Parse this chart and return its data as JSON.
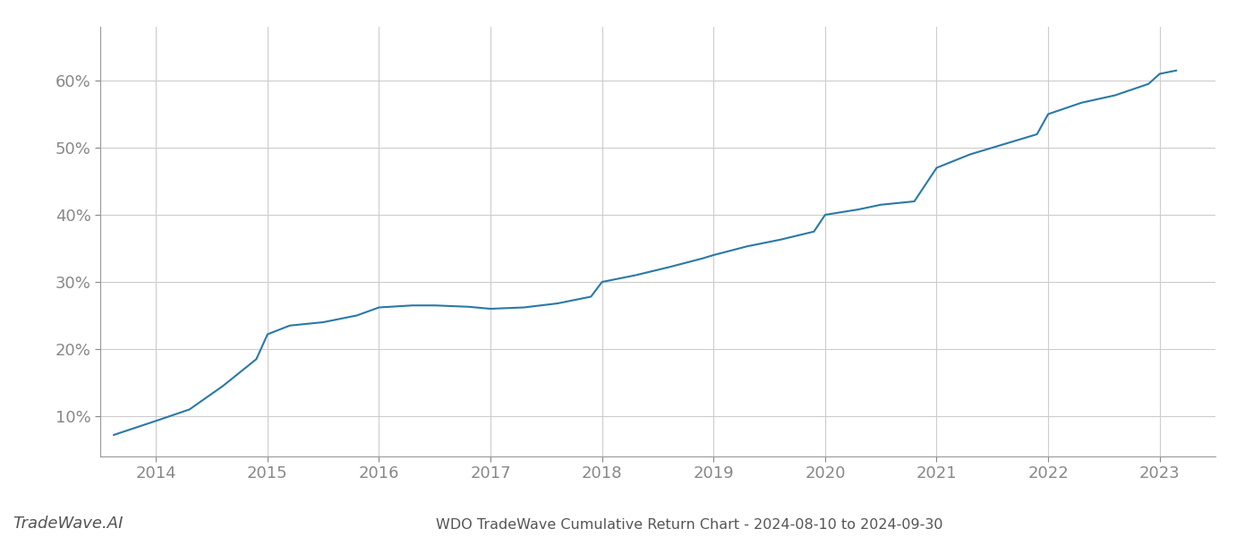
{
  "title": "WDO TradeWave Cumulative Return Chart - 2024-08-10 to 2024-09-30",
  "watermark": "TradeWave.AI",
  "line_color": "#2979a8",
  "background_color": "#ffffff",
  "grid_color": "#cccccc",
  "years": [
    2013.62,
    2014.0,
    2014.3,
    2014.6,
    2014.9,
    2015.0,
    2015.2,
    2015.5,
    2015.8,
    2016.0,
    2016.3,
    2016.5,
    2016.8,
    2017.0,
    2017.3,
    2017.6,
    2017.9,
    2018.0,
    2018.3,
    2018.6,
    2018.9,
    2019.0,
    2019.3,
    2019.6,
    2019.9,
    2020.0,
    2020.3,
    2020.5,
    2020.8,
    2021.0,
    2021.3,
    2021.6,
    2021.9,
    2022.0,
    2022.3,
    2022.6,
    2022.9,
    2023.0,
    2023.15
  ],
  "values": [
    0.072,
    0.093,
    0.11,
    0.145,
    0.185,
    0.222,
    0.235,
    0.24,
    0.25,
    0.262,
    0.265,
    0.265,
    0.263,
    0.26,
    0.262,
    0.268,
    0.278,
    0.3,
    0.31,
    0.322,
    0.335,
    0.34,
    0.353,
    0.363,
    0.375,
    0.4,
    0.408,
    0.415,
    0.42,
    0.47,
    0.49,
    0.505,
    0.52,
    0.55,
    0.567,
    0.578,
    0.595,
    0.61,
    0.615
  ],
  "xlim": [
    2013.5,
    2023.5
  ],
  "ylim": [
    0.04,
    0.68
  ],
  "xticks": [
    2014,
    2015,
    2016,
    2017,
    2018,
    2019,
    2020,
    2021,
    2022,
    2023
  ],
  "yticks": [
    0.1,
    0.2,
    0.3,
    0.4,
    0.5,
    0.6
  ],
  "ytick_labels": [
    "10%",
    "20%",
    "30%",
    "40%",
    "50%",
    "60%"
  ],
  "line_width": 1.5,
  "title_fontsize": 11.5,
  "tick_fontsize": 13,
  "watermark_fontsize": 13,
  "title_color": "#555555",
  "tick_color": "#888888",
  "watermark_color": "#555555",
  "spine_color": "#999999"
}
